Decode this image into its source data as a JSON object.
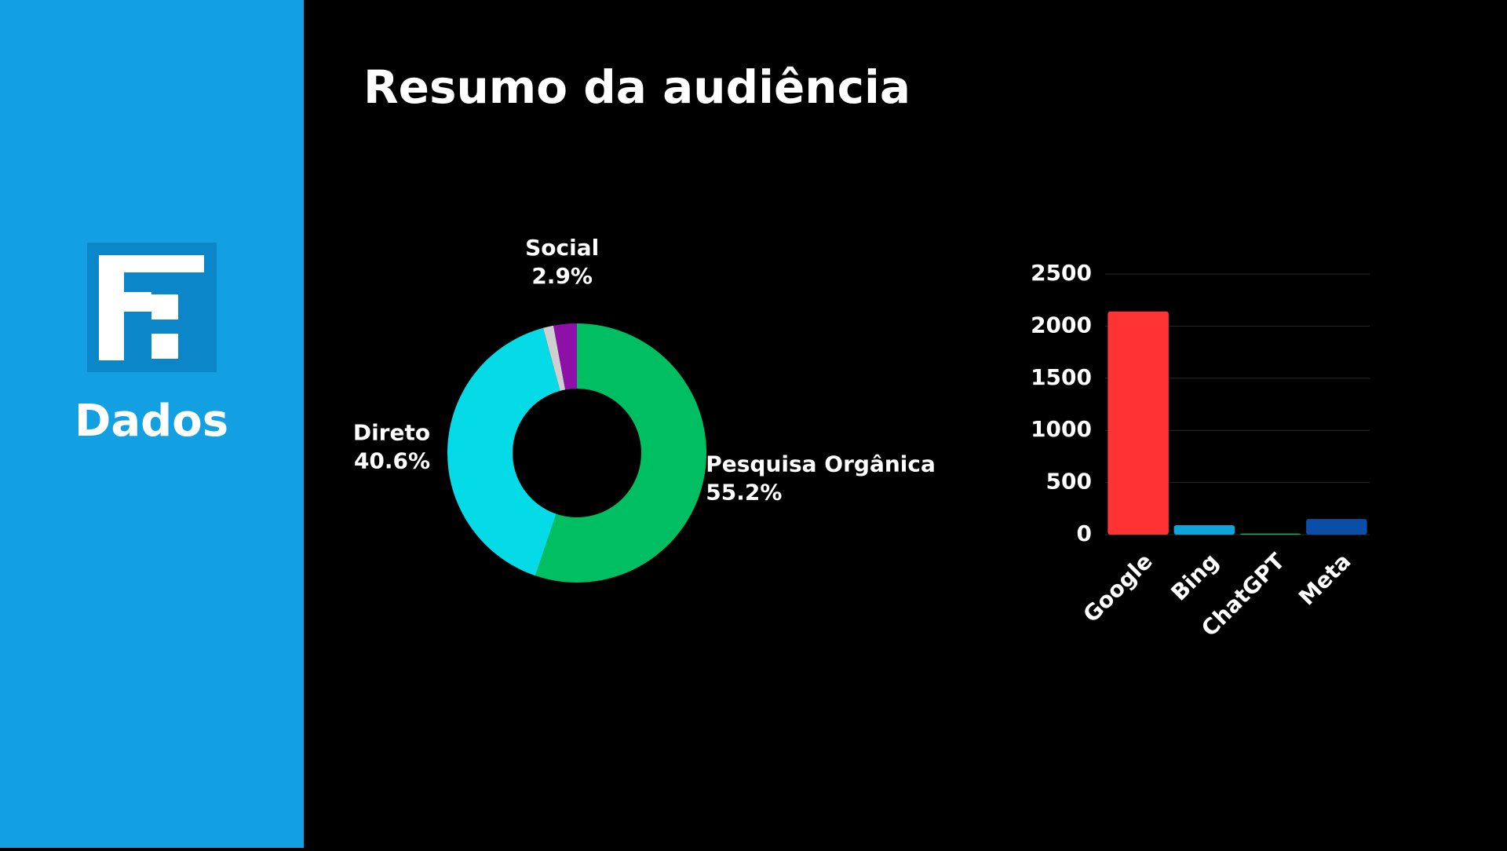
{
  "sidebar": {
    "label": "Dados"
  },
  "title": "Resumo da audiência",
  "chart_data": [
    {
      "type": "pie",
      "donut": true,
      "categories": [
        "Pesquisa Orgânica",
        "Direto",
        null,
        "Social"
      ],
      "values": [
        55.2,
        40.6,
        1.3,
        2.9
      ],
      "value_labels": [
        "55.2%",
        "40.6%",
        null,
        "2.9%"
      ],
      "colors": [
        "#00bf63",
        "#05dbe6",
        "#cfcfcf",
        "#8e10a8"
      ]
    },
    {
      "type": "bar",
      "categories": [
        "Google",
        "Bing",
        "ChatGPT",
        "Meta"
      ],
      "values": [
        2140,
        90,
        10,
        150
      ],
      "colors": [
        "#ff3333",
        "#0ea5dd",
        "#00bf63",
        "#0a4ea8"
      ],
      "ylim": [
        0,
        2500
      ],
      "yticks": [
        0,
        500,
        1000,
        1500,
        2000,
        2500
      ],
      "grid": true
    }
  ]
}
